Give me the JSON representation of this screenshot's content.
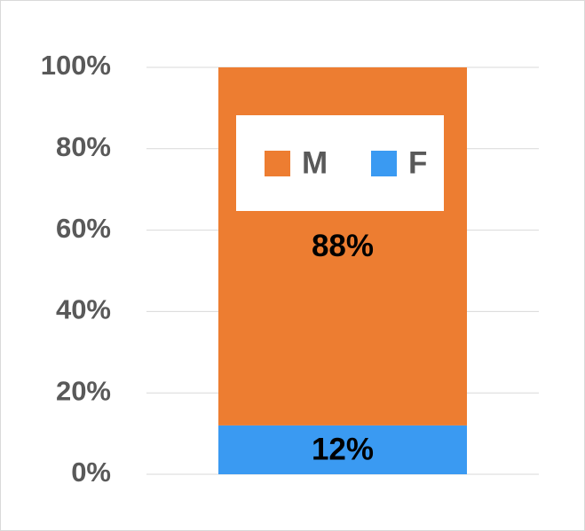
{
  "chart_data": {
    "type": "stacked_bar",
    "categories": [
      null
    ],
    "series": [
      {
        "name": "F",
        "color": "#3a9af2",
        "values": [
          12
        ],
        "value_labels": [
          "12%"
        ]
      },
      {
        "name": "M",
        "color": "#ed7d31",
        "values": [
          88
        ],
        "value_labels": [
          "88%"
        ]
      }
    ],
    "ylim": [
      0,
      100
    ],
    "yticks": [
      {
        "value": 0,
        "label": "0%"
      },
      {
        "value": 20,
        "label": "20%"
      },
      {
        "value": 40,
        "label": "40%"
      },
      {
        "value": 60,
        "label": "60%"
      },
      {
        "value": 80,
        "label": "80%"
      },
      {
        "value": 100,
        "label": "100%"
      }
    ],
    "grid": true,
    "legend": "top"
  }
}
